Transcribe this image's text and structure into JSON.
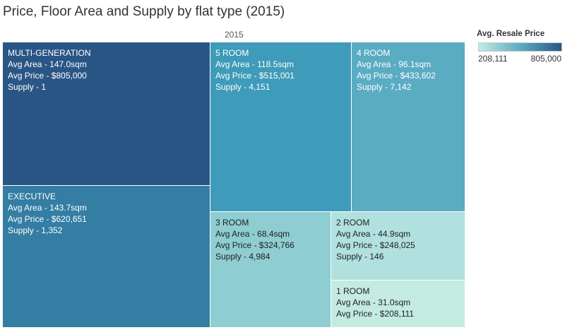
{
  "title": "Price, Floor Area and Supply by flat type (2015)",
  "column_header": "2015",
  "legend": {
    "title": "Avg. Resale Price",
    "min_label": "208,111",
    "max_label": "805,000",
    "color_low": "#c4ebe1",
    "color_mid": "#5aacc3",
    "color_high": "#2a5686"
  },
  "chart_data": {
    "type": "treemap",
    "title": "Price, Floor Area and Supply by flat type (2015)",
    "size_measure": "Supply",
    "color_measure": "Avg. Resale Price",
    "color_range": [
      208111,
      805000
    ],
    "items": [
      {
        "name": "MULTI-GENERATION",
        "avg_area_sqm": 147.0,
        "avg_price": 805000,
        "supply": 1,
        "color": "#2a5686",
        "lines": [
          "MULTI-GENERATION",
          "Avg Area - 147.0sqm",
          "Avg Price - $805,000",
          "Supply - 1"
        ]
      },
      {
        "name": "EXECUTIVE",
        "avg_area_sqm": 143.7,
        "avg_price": 620651,
        "supply": 1352,
        "color": "#347da3",
        "lines": [
          "EXECUTIVE",
          "Avg Area - 143.7sqm",
          "Avg Price - $620,651",
          "Supply - 1,352"
        ]
      },
      {
        "name": "5 ROOM",
        "avg_area_sqm": 118.5,
        "avg_price": 515001,
        "supply": 4151,
        "color": "#3e9bb9",
        "lines": [
          "5 ROOM",
          "Avg Area - 118.5sqm",
          "Avg Price - $515,001",
          "Supply - 4,151"
        ]
      },
      {
        "name": "4 ROOM",
        "avg_area_sqm": 96.1,
        "avg_price": 433602,
        "supply": 7142,
        "color": "#5aacc3",
        "lines": [
          "4 ROOM",
          "Avg Area - 96.1sqm",
          "Avg Price - $433,602",
          "Supply - 7,142"
        ]
      },
      {
        "name": "3 ROOM",
        "avg_area_sqm": 68.4,
        "avg_price": 324766,
        "supply": 4984,
        "color": "#8ecdd1",
        "lines": [
          "3 ROOM",
          "Avg Area - 68.4sqm",
          "Avg Price - $324,766",
          "Supply - 4,984"
        ]
      },
      {
        "name": "2 ROOM",
        "avg_area_sqm": 44.9,
        "avg_price": 248025,
        "supply": 146,
        "color": "#b0e1df",
        "lines": [
          "2 ROOM",
          "Avg Area - 44.9sqm",
          "Avg Price - $248,025",
          "Supply - 146"
        ]
      },
      {
        "name": "1 ROOM",
        "avg_area_sqm": 31.0,
        "avg_price": 208111,
        "color": "#c4ebe1",
        "lines": [
          "1 ROOM",
          "Avg Area - 31.0sqm",
          "Avg Price - $208,111"
        ]
      }
    ]
  }
}
